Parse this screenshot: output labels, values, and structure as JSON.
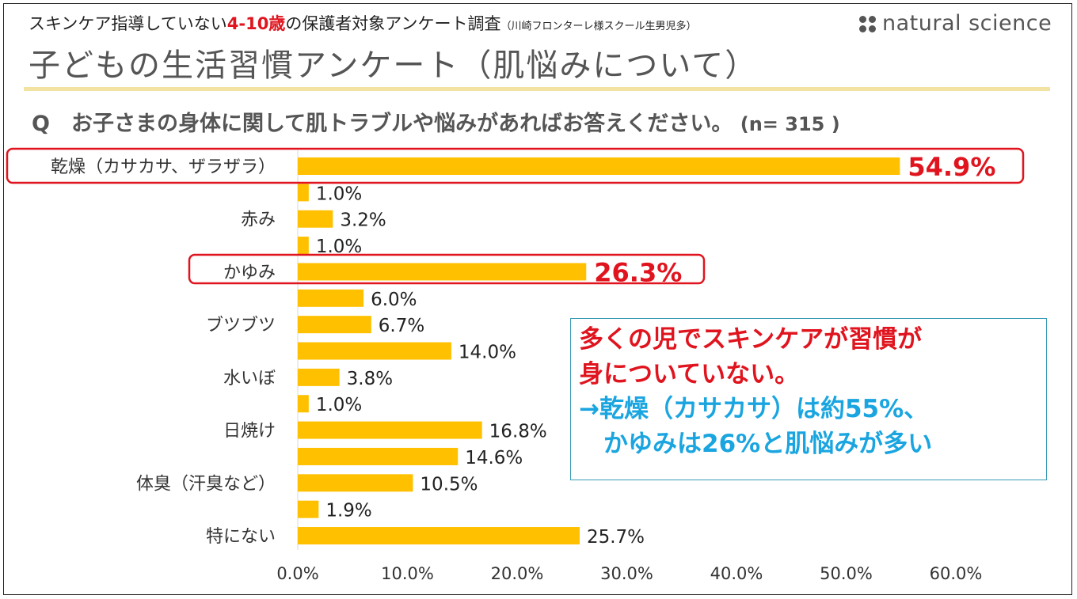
{
  "header": {
    "subtitle_pre": "スキンケア指導していない",
    "subtitle_age": "4-10歳",
    "subtitle_post": "の保護者対象アンケート調査",
    "subtitle_note": "（川崎フロンターレ様スクール生男児多）",
    "brand": "natural science",
    "title": "子どもの生活習慣アンケート（肌悩みについて）",
    "question": "Q　お子さまの身体に関して肌トラブルや悩みがあればお答えください。",
    "n": "(n= 315 )"
  },
  "callout": {
    "line1": "多くの児でスキンケアが習慣が",
    "line2": "身についていない。",
    "line3": "→乾燥（カサカサ）は約55%、",
    "line4": "　かゆみは26%と肌悩みが多い"
  },
  "colors": {
    "bar": "#ffc000",
    "highlight": "#e0141e",
    "callout_border": "#3a9bb5",
    "callout_blue": "#1aa5e0"
  },
  "chart_data": {
    "type": "bar",
    "orientation": "horizontal",
    "categories": [
      "乾燥（カサカサ、ザラザラ）",
      "",
      "赤み",
      "",
      "かゆみ",
      "",
      "ブツブツ",
      "",
      "水いぼ",
      "",
      "日焼け",
      "",
      "体臭（汗臭など）",
      "",
      "特にない"
    ],
    "values": [
      54.9,
      1.0,
      3.2,
      1.0,
      26.3,
      6.0,
      6.7,
      14.0,
      3.8,
      1.0,
      16.8,
      14.6,
      10.5,
      1.9,
      25.7
    ],
    "data_labels": [
      "54.9%",
      "1.0%",
      "3.2%",
      "1.0%",
      "26.3%",
      "6.0%",
      "6.7%",
      "14.0%",
      "3.8%",
      "1.0%",
      "16.8%",
      "14.6%",
      "10.5%",
      "1.9%",
      "25.7%"
    ],
    "highlighted": [
      0,
      4
    ],
    "xlim": [
      0,
      60
    ],
    "xticks": [
      "0.0%",
      "10.0%",
      "20.0%",
      "30.0%",
      "40.0%",
      "50.0%",
      "60.0%"
    ],
    "grid": false,
    "xlabel": "",
    "ylabel": ""
  }
}
